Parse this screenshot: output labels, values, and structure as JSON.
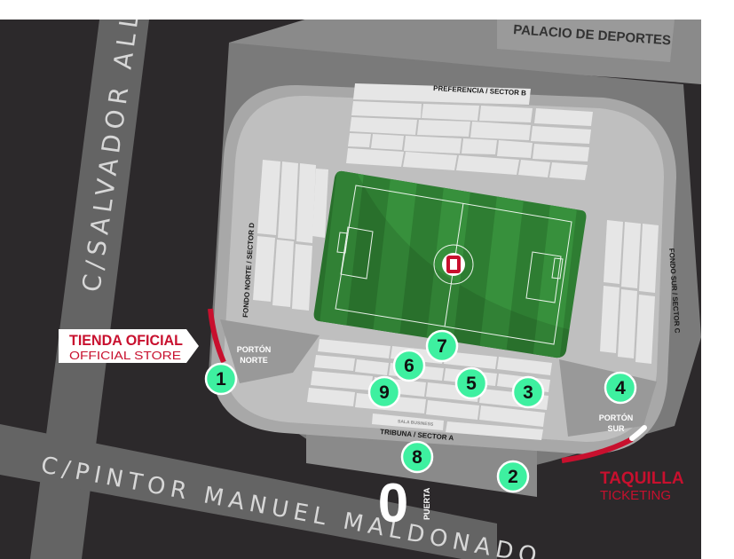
{
  "streets": {
    "salvador_allende": "C/SALVADOR ALLENDE",
    "pintor_manuel_maldonado": "C/PINTOR MANUEL MALDONADO"
  },
  "buildings": {
    "palacio_deportes": "PALACIO DE DEPORTES"
  },
  "stands": {
    "preferencia": "PREFERENCIA / SECTOR B",
    "fondo_norte": "FONDO NORTE / SECTOR D",
    "fondo_sur": "FONDO SUR / SECTOR C",
    "tribuna": "TRIBUNA / SECTOR A",
    "sala_business": "SALA BUSINESS"
  },
  "gates": {
    "porton_norte": [
      "PORTÓN",
      "NORTE"
    ],
    "porton_sur": [
      "PORTÓN",
      "SUR"
    ],
    "puerta_number": "0",
    "puerta_label": "PUERTA"
  },
  "store": {
    "title": "TIENDA OFICIAL",
    "subtitle": "OFFICIAL STORE"
  },
  "ticketing": {
    "title": "TAQUILLA",
    "subtitle": "TICKETING"
  },
  "markers": [
    "1",
    "2",
    "3",
    "4",
    "5",
    "6",
    "7",
    "8",
    "9"
  ],
  "colors": {
    "background": "#2c292b",
    "street": "#646464",
    "stadium_shell": "#a8a8a8",
    "stands": "#e6e6e6",
    "pitch": "#2e7d32",
    "marker": "#3ef0a0",
    "accent_red": "#c8102e"
  }
}
